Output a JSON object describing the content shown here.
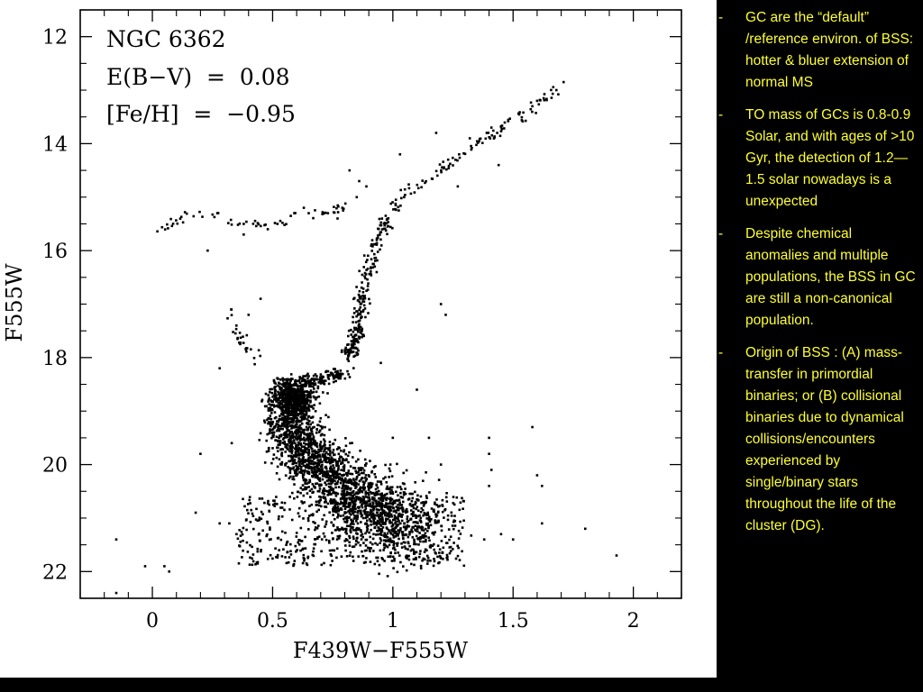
{
  "chart_data": {
    "type": "scatter",
    "title": "",
    "xlabel": "F439W−F555W",
    "ylabel": "F555W",
    "xlim": [
      -0.3,
      2.2
    ],
    "ylim": [
      22.5,
      11.5
    ],
    "y_inverted": true,
    "x_ticks": [
      0,
      0.5,
      1,
      1.5,
      2
    ],
    "x_tick_labels": [
      "0",
      "0.5",
      "1",
      "1.5",
      "2"
    ],
    "y_ticks": [
      12,
      14,
      16,
      18,
      20,
      22
    ],
    "y_tick_labels": [
      "12",
      "14",
      "16",
      "18",
      "20",
      "22"
    ],
    "annotations": [
      "NGC 6362",
      "E(B−V)  =  0.08",
      "[Fe/H]  =  −0.95"
    ],
    "legend": "none",
    "grid": false,
    "marker_color": "#000000",
    "sequences": {
      "main_sequence_turnoff": [
        [
          0.55,
          18.6
        ],
        [
          0.6,
          18.7
        ],
        [
          0.57,
          19.0
        ],
        [
          0.6,
          19.5
        ],
        [
          0.68,
          20.0
        ],
        [
          0.8,
          20.5
        ],
        [
          0.95,
          20.9
        ],
        [
          1.1,
          21.3
        ]
      ],
      "subgiant_branch": [
        [
          0.6,
          18.5
        ],
        [
          0.7,
          18.4
        ],
        [
          0.8,
          18.3
        ]
      ],
      "red_giant_branch": [
        [
          0.82,
          18.0
        ],
        [
          0.85,
          17.5
        ],
        [
          0.87,
          17.0
        ],
        [
          0.89,
          16.5
        ],
        [
          0.92,
          16.0
        ],
        [
          0.97,
          15.5
        ],
        [
          1.05,
          15.0
        ],
        [
          1.2,
          14.5
        ],
        [
          1.35,
          14.0
        ],
        [
          1.5,
          13.6
        ],
        [
          1.7,
          12.9
        ]
      ],
      "horizontal_branch_blue": [
        [
          0.05,
          15.6
        ],
        [
          0.1,
          15.4
        ],
        [
          0.2,
          15.3
        ],
        [
          0.35,
          15.5
        ],
        [
          0.5,
          15.5
        ],
        [
          0.6,
          15.4
        ],
        [
          0.7,
          15.3
        ],
        [
          0.8,
          15.2
        ]
      ],
      "blue_stragglers": [
        [
          0.3,
          17.0
        ],
        [
          0.35,
          17.5
        ],
        [
          0.37,
          17.8
        ],
        [
          0.38,
          17.7
        ],
        [
          0.45,
          18.2
        ]
      ]
    },
    "scattered_points": [
      [
        0.23,
        16.0
      ],
      [
        0.27,
        15.3
      ],
      [
        0.38,
        15.5
      ],
      [
        0.38,
        15.7
      ],
      [
        0.48,
        15.6
      ],
      [
        0.52,
        15.5
      ],
      [
        0.59,
        15.3
      ],
      [
        0.63,
        15.2
      ],
      [
        0.65,
        15.3
      ],
      [
        0.73,
        15.3
      ],
      [
        0.77,
        15.4
      ],
      [
        0.79,
        15.2
      ],
      [
        0.85,
        15.0
      ],
      [
        0.82,
        14.5
      ],
      [
        0.86,
        14.7
      ],
      [
        0.89,
        14.8
      ],
      [
        1.03,
        14.2
      ],
      [
        1.18,
        13.8
      ],
      [
        1.23,
        14.3
      ],
      [
        1.27,
        14.8
      ],
      [
        1.32,
        13.9
      ],
      [
        1.41,
        13.7
      ],
      [
        1.44,
        14.4
      ],
      [
        1.58,
        13.3
      ],
      [
        1.6,
        13.2
      ],
      [
        1.68,
        13.0
      ],
      [
        1.71,
        12.85
      ],
      [
        1.2,
        17.0
      ],
      [
        1.22,
        17.2
      ],
      [
        1.1,
        18.6
      ],
      [
        0.95,
        18.1
      ],
      [
        1.0,
        19.5
      ],
      [
        1.15,
        19.5
      ],
      [
        1.4,
        19.5
      ],
      [
        1.4,
        19.8
      ],
      [
        1.58,
        19.3
      ],
      [
        1.6,
        20.2
      ],
      [
        1.62,
        20.4
      ],
      [
        1.41,
        20.1
      ],
      [
        1.4,
        20.4
      ],
      [
        1.2,
        20.0
      ],
      [
        0.2,
        19.8
      ],
      [
        0.33,
        19.6
      ],
      [
        0.28,
        21.1
      ],
      [
        -0.15,
        21.4
      ],
      [
        -0.03,
        21.9
      ],
      [
        0.05,
        21.9
      ],
      [
        0.07,
        22.0
      ],
      [
        0.18,
        20.9
      ],
      [
        1.8,
        21.2
      ],
      [
        1.93,
        21.7
      ],
      [
        1.62,
        21.1
      ],
      [
        1.5,
        21.4
      ],
      [
        1.45,
        21.3
      ],
      [
        1.38,
        21.4
      ],
      [
        -0.15,
        22.4
      ],
      [
        0.35,
        21.3
      ],
      [
        0.32,
        21.1
      ],
      [
        0.28,
        18.2
      ],
      [
        0.4,
        17.2
      ],
      [
        0.45,
        16.9
      ]
    ]
  },
  "notes": [
    {
      "marker": "-",
      "text": "GC are the “default” /reference environ. of BSS: hotter & bluer extension of normal MS"
    },
    {
      "marker": "-",
      "text": "TO mass of GCs is 0.8-0.9 Solar, and with ages of >10 Gyr, the detection of 1.2—1.5 solar nowadays is a unexpected"
    },
    {
      "marker": "-",
      "text": "Despite chemical anomalies and multiple populations, the BSS in GC are still a non-canonical  population."
    },
    {
      "marker": "-",
      "text": " Origin of BSS : (A) mass-transfer in primordial binaries; or (B) collisional binaries due to dynamical collisions/encounters experienced by single/binary stars throughout the life of the cluster (DG)."
    }
  ],
  "colors": {
    "background": "#000000",
    "figure_background": "#ffffff",
    "note_text": "#ffff33"
  }
}
